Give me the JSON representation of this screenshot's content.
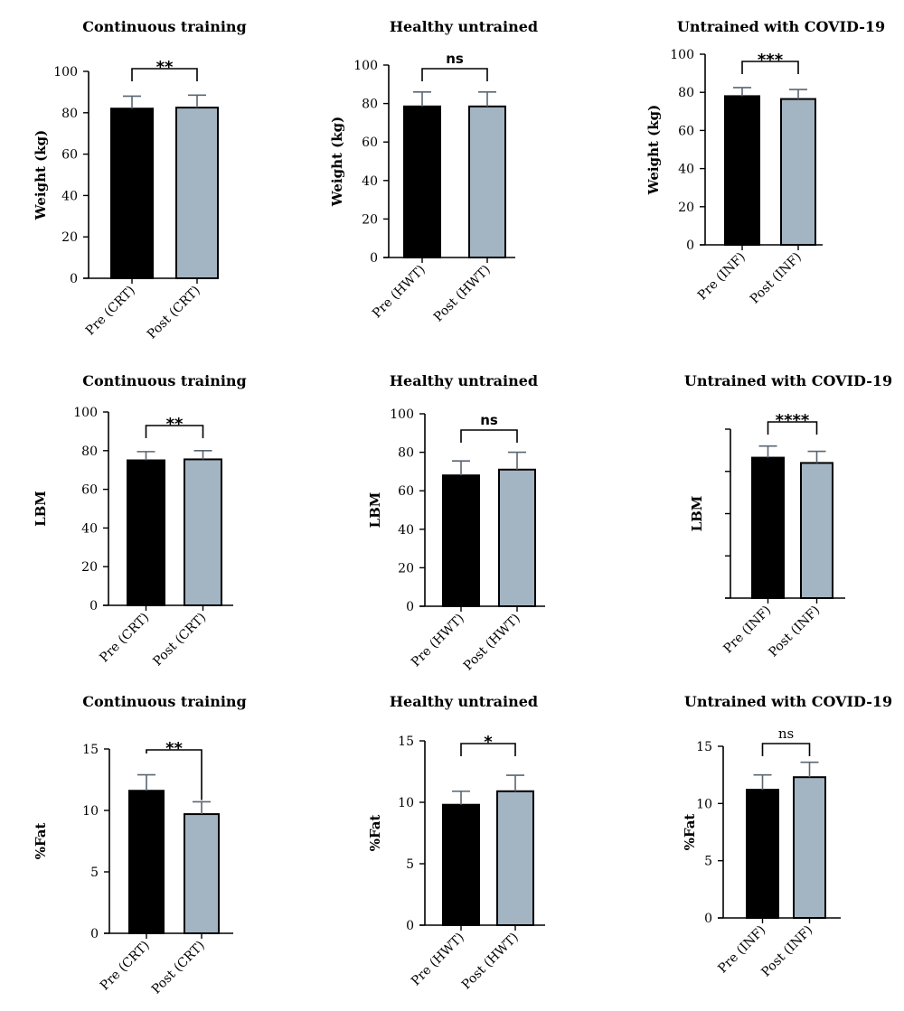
{
  "colors": {
    "pre": "#000000",
    "post": "#a3b4c2",
    "axis": "#000000",
    "error": "#5a6672"
  },
  "chart_data": [
    {
      "type": "bar",
      "title": "Continuous training",
      "ylabel": "Weight (kg)",
      "categories": [
        "Pre (CRT)",
        "Post (CRT)"
      ],
      "values": [
        82,
        82.5
      ],
      "errors": [
        6,
        6
      ],
      "ylim": [
        0,
        100
      ],
      "yticks": [
        0,
        20,
        40,
        60,
        80,
        100
      ],
      "significance": "**",
      "grid": false
    },
    {
      "type": "bar",
      "title": "Healthy untrained",
      "ylabel": "Weight (kg)",
      "categories": [
        "Pre (HWT)",
        "Post (HWT)"
      ],
      "values": [
        78.5,
        78.5
      ],
      "errors": [
        7.5,
        7.5
      ],
      "ylim": [
        0,
        100
      ],
      "yticks": [
        0,
        20,
        40,
        60,
        80,
        100
      ],
      "significance": "ns",
      "grid": false
    },
    {
      "type": "bar",
      "title": "Untrained with COVID-19",
      "ylabel": "Weight (kg)",
      "categories": [
        "Pre (INF)",
        "Post (INF)"
      ],
      "values": [
        78,
        76.5
      ],
      "errors": [
        4.5,
        5
      ],
      "ylim": [
        0,
        100
      ],
      "yticks": [
        0,
        20,
        40,
        60,
        80,
        100
      ],
      "significance": "***",
      "grid": false
    },
    {
      "type": "bar",
      "title": "Continuous training",
      "ylabel": "LBM",
      "categories": [
        "Pre (CRT)",
        "Post (CRT)"
      ],
      "values": [
        75,
        75.5
      ],
      "errors": [
        4.5,
        4.5
      ],
      "ylim": [
        0,
        100
      ],
      "yticks": [
        0,
        20,
        40,
        60,
        80,
        100
      ],
      "significance": "**",
      "grid": false
    },
    {
      "type": "bar",
      "title": "Healthy untrained",
      "ylabel": "LBM",
      "categories": [
        "Pre (HWT)",
        "Post (HWT)"
      ],
      "values": [
        68,
        71
      ],
      "errors": [
        7.5,
        9
      ],
      "ylim": [
        0,
        100
      ],
      "yticks": [
        0,
        20,
        40,
        60,
        80,
        100
      ],
      "significance": "ns",
      "grid": false
    },
    {
      "type": "bar",
      "title": "Untrained with COVID-19",
      "ylabel": "LBM",
      "categories": [
        "Pre (INF)",
        "Post (INF)"
      ],
      "values": [
        66.5,
        64
      ],
      "errors": [
        5.5,
        5.5
      ],
      "ylim": [
        0,
        80
      ],
      "yticks": [
        0,
        20,
        40,
        60,
        80
      ],
      "hide_tick_labels": true,
      "significance": "****",
      "grid": false
    },
    {
      "type": "bar",
      "title": "Continuous training",
      "ylabel": "%Fat",
      "categories": [
        "Pre (CRT)",
        "Post (CRT)"
      ],
      "values": [
        11.6,
        9.7
      ],
      "errors": [
        1.3,
        1.0
      ],
      "ylim": [
        0,
        15
      ],
      "yticks": [
        0,
        5,
        10,
        15
      ],
      "significance": "**",
      "grid": false
    },
    {
      "type": "bar",
      "title": "Healthy untrained",
      "ylabel": "%Fat",
      "categories": [
        "Pre (HWT)",
        "Post (HWT)"
      ],
      "values": [
        9.8,
        10.9
      ],
      "errors": [
        1.1,
        1.3
      ],
      "ylim": [
        0,
        15
      ],
      "yticks": [
        0,
        5,
        10,
        15
      ],
      "significance": "*",
      "grid": false
    },
    {
      "type": "bar",
      "title": "Untrained with COVID-19",
      "ylabel": "%Fat",
      "categories": [
        "Pre (INF)",
        "Post (INF)"
      ],
      "values": [
        11.2,
        12.3
      ],
      "errors": [
        1.3,
        1.3
      ],
      "ylim": [
        0,
        15
      ],
      "yticks": [
        0,
        5,
        10,
        15
      ],
      "significance": "ns",
      "significance_style": "light",
      "grid": false
    }
  ]
}
